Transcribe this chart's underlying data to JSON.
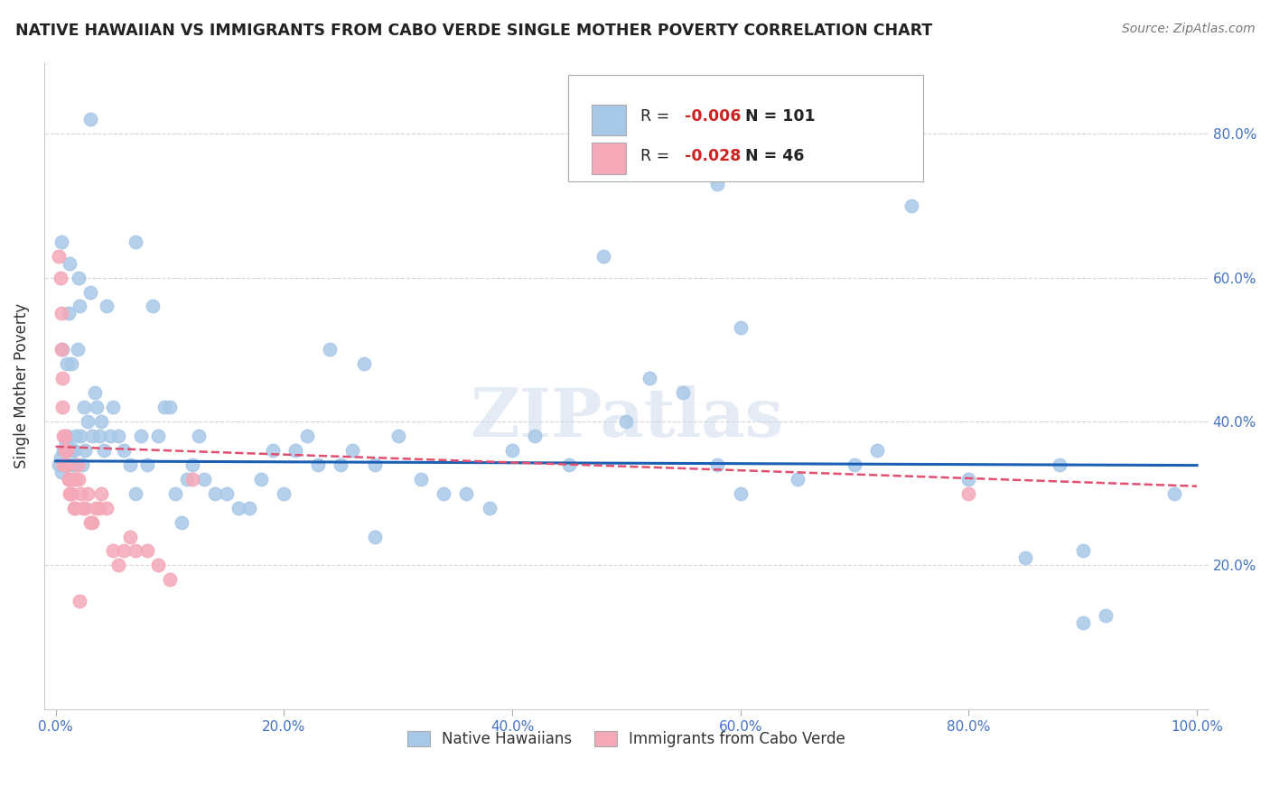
{
  "title": "NATIVE HAWAIIAN VS IMMIGRANTS FROM CABO VERDE SINGLE MOTHER POVERTY CORRELATION CHART",
  "source": "Source: ZipAtlas.com",
  "ylabel": "Single Mother Poverty",
  "legend1_label": "Native Hawaiians",
  "legend2_label": "Immigrants from Cabo Verde",
  "R1": "-0.006",
  "N1": "101",
  "R2": "-0.028",
  "N2": "46",
  "color_blue": "#a8c8e8",
  "color_pink": "#f4a8b8",
  "line_blue": "#1a5fb4",
  "line_pink": "#e05070",
  "watermark": "ZIPatlas",
  "blue_x": [
    0.003,
    0.004,
    0.005,
    0.006,
    0.007,
    0.007,
    0.008,
    0.009,
    0.01,
    0.01,
    0.011,
    0.011,
    0.012,
    0.013,
    0.014,
    0.015,
    0.015,
    0.016,
    0.017,
    0.018,
    0.019,
    0.02,
    0.021,
    0.022,
    0.023,
    0.025,
    0.026,
    0.028,
    0.03,
    0.032,
    0.034,
    0.036,
    0.038,
    0.04,
    0.042,
    0.045,
    0.048,
    0.05,
    0.055,
    0.06,
    0.065,
    0.07,
    0.075,
    0.08,
    0.085,
    0.09,
    0.095,
    0.1,
    0.105,
    0.11,
    0.115,
    0.12,
    0.125,
    0.13,
    0.14,
    0.15,
    0.16,
    0.17,
    0.18,
    0.19,
    0.2,
    0.21,
    0.22,
    0.23,
    0.24,
    0.25,
    0.26,
    0.27,
    0.28,
    0.3,
    0.32,
    0.34,
    0.36,
    0.38,
    0.4,
    0.42,
    0.45,
    0.48,
    0.5,
    0.52,
    0.55,
    0.58,
    0.6,
    0.65,
    0.7,
    0.72,
    0.75,
    0.8,
    0.85,
    0.88,
    0.9,
    0.92,
    0.28,
    0.07,
    0.03,
    0.01,
    0.005,
    0.58,
    0.9,
    0.6,
    0.98
  ],
  "blue_y": [
    0.34,
    0.35,
    0.33,
    0.5,
    0.36,
    0.34,
    0.34,
    0.37,
    0.38,
    0.36,
    0.34,
    0.55,
    0.62,
    0.36,
    0.48,
    0.36,
    0.34,
    0.36,
    0.34,
    0.38,
    0.5,
    0.6,
    0.56,
    0.38,
    0.34,
    0.42,
    0.36,
    0.4,
    0.58,
    0.38,
    0.44,
    0.42,
    0.38,
    0.4,
    0.36,
    0.56,
    0.38,
    0.42,
    0.38,
    0.36,
    0.34,
    0.3,
    0.38,
    0.34,
    0.56,
    0.38,
    0.42,
    0.42,
    0.3,
    0.26,
    0.32,
    0.34,
    0.38,
    0.32,
    0.3,
    0.3,
    0.28,
    0.28,
    0.32,
    0.36,
    0.3,
    0.36,
    0.38,
    0.34,
    0.5,
    0.34,
    0.36,
    0.48,
    0.34,
    0.38,
    0.32,
    0.3,
    0.3,
    0.28,
    0.36,
    0.38,
    0.34,
    0.63,
    0.4,
    0.46,
    0.44,
    0.34,
    0.3,
    0.32,
    0.34,
    0.36,
    0.7,
    0.32,
    0.21,
    0.34,
    0.12,
    0.13,
    0.24,
    0.65,
    0.82,
    0.48,
    0.65,
    0.73,
    0.22,
    0.53,
    0.3
  ],
  "pink_x": [
    0.003,
    0.004,
    0.005,
    0.005,
    0.006,
    0.006,
    0.007,
    0.007,
    0.008,
    0.008,
    0.009,
    0.009,
    0.01,
    0.01,
    0.011,
    0.011,
    0.012,
    0.013,
    0.014,
    0.015,
    0.016,
    0.017,
    0.018,
    0.019,
    0.02,
    0.021,
    0.022,
    0.024,
    0.026,
    0.028,
    0.03,
    0.032,
    0.035,
    0.038,
    0.04,
    0.045,
    0.05,
    0.055,
    0.06,
    0.065,
    0.07,
    0.08,
    0.09,
    0.1,
    0.12,
    0.8
  ],
  "pink_y": [
    0.63,
    0.6,
    0.55,
    0.5,
    0.46,
    0.42,
    0.38,
    0.34,
    0.36,
    0.38,
    0.34,
    0.34,
    0.34,
    0.36,
    0.32,
    0.32,
    0.3,
    0.3,
    0.3,
    0.32,
    0.28,
    0.28,
    0.32,
    0.34,
    0.32,
    0.15,
    0.3,
    0.28,
    0.28,
    0.3,
    0.26,
    0.26,
    0.28,
    0.28,
    0.3,
    0.28,
    0.22,
    0.2,
    0.22,
    0.24,
    0.22,
    0.22,
    0.2,
    0.18,
    0.32,
    0.3
  ],
  "xlim": [
    -0.01,
    1.01
  ],
  "ylim": [
    0.0,
    0.9
  ],
  "xticks": [
    0.0,
    0.2,
    0.4,
    0.6,
    0.8,
    1.0
  ],
  "xticklabels": [
    "0.0%",
    "20.0%",
    "40.0%",
    "60.0%",
    "80.0%",
    "100.0%"
  ],
  "ytick_vals": [
    0.2,
    0.4,
    0.6,
    0.8
  ],
  "yticklabels": [
    "20.0%",
    "40.0%",
    "60.0%",
    "80.0%"
  ]
}
